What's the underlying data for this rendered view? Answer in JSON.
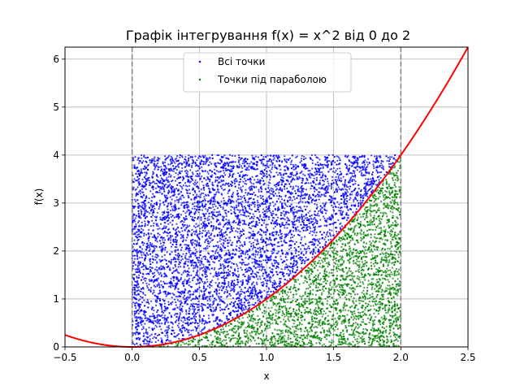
{
  "chart_data": {
    "type": "scatter",
    "title": "Графік інтегрування f(x) = x^2 від 0 до 2",
    "xlabel": "x",
    "ylabel": "f(x)",
    "xlim": [
      -0.5,
      2.5
    ],
    "ylim": [
      0,
      6.25
    ],
    "x_ticks": [
      -0.5,
      0.0,
      0.5,
      1.0,
      1.5,
      2.0,
      2.5
    ],
    "x_tick_labels": [
      "−0.5",
      "0.0",
      "0.5",
      "1.0",
      "1.5",
      "2.0",
      "2.5"
    ],
    "y_ticks": [
      0,
      1,
      2,
      3,
      4,
      5,
      6
    ],
    "y_tick_labels": [
      "0",
      "1",
      "2",
      "3",
      "4",
      "5",
      "6"
    ],
    "grid": true,
    "legend_position": "top-center",
    "sampling_region": {
      "x": [
        0,
        2
      ],
      "y": [
        0,
        4
      ]
    },
    "vertical_lines": [
      0,
      2
    ],
    "curve": {
      "function": "x^2",
      "color": "#ff0000"
    },
    "series": [
      {
        "name": "Всі точки",
        "color": "#0000ff",
        "count": 10000
      },
      {
        "name": "Точки під параболою",
        "color": "#008000"
      }
    ]
  }
}
